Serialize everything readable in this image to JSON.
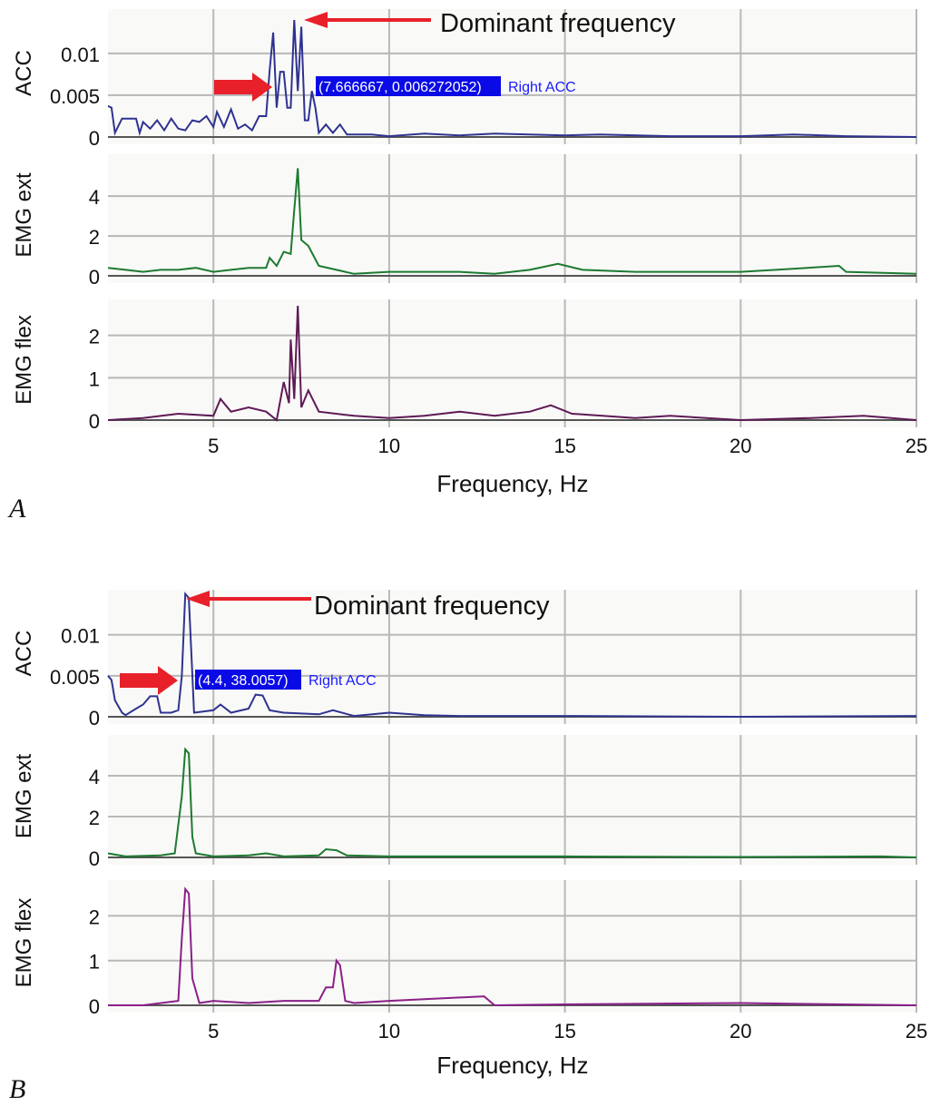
{
  "colors": {
    "acc": "#2f3390",
    "emg_ext": "#1d7a30",
    "emg_flex_a": "#5e1a55",
    "emg_flex_b": "#8a1f88",
    "arrow": "#e8202a",
    "cursor_box": "#0a0ae6",
    "series_label": "#1a1aff",
    "grid": "#b8b8b8"
  },
  "chart_data": [
    {
      "panel_label": "A",
      "type": "line",
      "xlabel": "Frequency, Hz",
      "xlim": [
        2,
        25
      ],
      "xticks": [
        5,
        10,
        15,
        20,
        25
      ],
      "grid": true,
      "annotation": {
        "text": "Dominant frequency",
        "cursor": "(7.666667, 0.006272052)",
        "series": "Right ACC"
      },
      "subplots": [
        {
          "ylabel": "ACC",
          "ylim": [
            0,
            0.0153
          ],
          "yticks": [
            0,
            0.005,
            0.01
          ],
          "ytick_labels": [
            "0",
            "0.005",
            "0.01"
          ],
          "color_key": "acc",
          "points": [
            [
              2,
              0.0037
            ],
            [
              2.1,
              0.0035
            ],
            [
              2.2,
              0.0005
            ],
            [
              2.4,
              0.0022
            ],
            [
              2.8,
              0.0022
            ],
            [
              2.9,
              0.0005
            ],
            [
              3,
              0.0018
            ],
            [
              3.2,
              0.001
            ],
            [
              3.4,
              0.002
            ],
            [
              3.6,
              0.0008
            ],
            [
              3.8,
              0.0022
            ],
            [
              4,
              0.001
            ],
            [
              4.2,
              0.0008
            ],
            [
              4.4,
              0.002
            ],
            [
              4.6,
              0.0018
            ],
            [
              4.8,
              0.0025
            ],
            [
              5,
              0.0012
            ],
            [
              5.1,
              0.003
            ],
            [
              5.3,
              0.0012
            ],
            [
              5.5,
              0.0033
            ],
            [
              5.7,
              0.001
            ],
            [
              5.9,
              0.0015
            ],
            [
              6.1,
              0.0008
            ],
            [
              6.3,
              0.0025
            ],
            [
              6.5,
              0.0025
            ],
            [
              6.6,
              0.008
            ],
            [
              6.7,
              0.0125
            ],
            [
              6.8,
              0.0035
            ],
            [
              6.9,
              0.0078
            ],
            [
              7,
              0.0078
            ],
            [
              7.1,
              0.0035
            ],
            [
              7.2,
              0.0035
            ],
            [
              7.3,
              0.014
            ],
            [
              7.4,
              0.0055
            ],
            [
              7.5,
              0.0132
            ],
            [
              7.6,
              0.002
            ],
            [
              7.7,
              0.002
            ],
            [
              7.8,
              0.0055
            ],
            [
              7.9,
              0.0035
            ],
            [
              8,
              0.0005
            ],
            [
              8.2,
              0.0015
            ],
            [
              8.4,
              0.0005
            ],
            [
              8.6,
              0.0015
            ],
            [
              8.8,
              0.0003
            ],
            [
              9.5,
              0.0003
            ],
            [
              10,
              0.0001
            ],
            [
              11,
              0.0004
            ],
            [
              12,
              0.0002
            ],
            [
              13,
              0.0004
            ],
            [
              14,
              0.0003
            ],
            [
              15,
              0.0002
            ],
            [
              16,
              0.0003
            ],
            [
              18,
              0.0001
            ],
            [
              20,
              0.0001
            ],
            [
              21.5,
              0.0003
            ],
            [
              23,
              0.0001
            ],
            [
              25,
              0
            ]
          ]
        },
        {
          "ylabel": "EMG ext",
          "ylim": [
            0,
            6.1
          ],
          "yticks": [
            0,
            2,
            4
          ],
          "ytick_labels": [
            "0",
            "2",
            "4"
          ],
          "color_key": "emg_ext",
          "points": [
            [
              2,
              0.4
            ],
            [
              2.5,
              0.3
            ],
            [
              3,
              0.2
            ],
            [
              3.5,
              0.3
            ],
            [
              4,
              0.3
            ],
            [
              4.5,
              0.4
            ],
            [
              5,
              0.2
            ],
            [
              5.5,
              0.3
            ],
            [
              6,
              0.4
            ],
            [
              6.5,
              0.4
            ],
            [
              6.6,
              0.9
            ],
            [
              6.8,
              0.5
            ],
            [
              7,
              1.2
            ],
            [
              7.2,
              1.1
            ],
            [
              7.3,
              3.3
            ],
            [
              7.4,
              5.4
            ],
            [
              7.5,
              1.8
            ],
            [
              7.7,
              1.5
            ],
            [
              8,
              0.5
            ],
            [
              8.5,
              0.3
            ],
            [
              9,
              0.1
            ],
            [
              10,
              0.2
            ],
            [
              11,
              0.2
            ],
            [
              12,
              0.2
            ],
            [
              13,
              0.1
            ],
            [
              14,
              0.3
            ],
            [
              14.8,
              0.6
            ],
            [
              15.5,
              0.3
            ],
            [
              17,
              0.2
            ],
            [
              18,
              0.2
            ],
            [
              20,
              0.2
            ],
            [
              21,
              0.3
            ],
            [
              22.8,
              0.5
            ],
            [
              23,
              0.2
            ],
            [
              25,
              0.1
            ]
          ]
        },
        {
          "ylabel": "EMG flex",
          "ylim": [
            0,
            2.85
          ],
          "yticks": [
            0,
            1,
            2
          ],
          "ytick_labels": [
            "0",
            "1",
            "2"
          ],
          "color_key": "emg_flex_a",
          "points": [
            [
              2,
              0
            ],
            [
              3,
              0.05
            ],
            [
              4,
              0.15
            ],
            [
              5,
              0.1
            ],
            [
              5.2,
              0.5
            ],
            [
              5.5,
              0.2
            ],
            [
              6,
              0.3
            ],
            [
              6.5,
              0.2
            ],
            [
              6.8,
              0
            ],
            [
              7,
              0.9
            ],
            [
              7.15,
              0.4
            ],
            [
              7.2,
              1.9
            ],
            [
              7.3,
              0.5
            ],
            [
              7.4,
              2.7
            ],
            [
              7.5,
              0.3
            ],
            [
              7.7,
              0.7
            ],
            [
              8,
              0.2
            ],
            [
              9,
              0.1
            ],
            [
              10,
              0.05
            ],
            [
              11,
              0.1
            ],
            [
              12,
              0.2
            ],
            [
              13,
              0.1
            ],
            [
              14,
              0.2
            ],
            [
              14.6,
              0.35
            ],
            [
              15.2,
              0.15
            ],
            [
              17,
              0.05
            ],
            [
              18,
              0.1
            ],
            [
              20,
              0
            ],
            [
              22,
              0.05
            ],
            [
              23.5,
              0.1
            ],
            [
              25,
              0
            ]
          ]
        }
      ]
    },
    {
      "panel_label": "B",
      "type": "line",
      "xlabel": "Frequency, Hz",
      "xlim": [
        2,
        25
      ],
      "xticks": [
        5,
        10,
        15,
        20,
        25
      ],
      "grid": true,
      "annotation": {
        "text": "Dominant frequency",
        "cursor": "(4.4, 38.0057)",
        "series": "Right ACC"
      },
      "subplots": [
        {
          "ylabel": "ACC",
          "ylim": [
            0,
            0.0155
          ],
          "yticks": [
            0,
            0.005,
            0.01
          ],
          "ytick_labels": [
            "0",
            "0.005",
            "0.01"
          ],
          "color_key": "acc",
          "points": [
            [
              2,
              0.005
            ],
            [
              2.1,
              0.0045
            ],
            [
              2.2,
              0.002
            ],
            [
              2.4,
              0.0005
            ],
            [
              2.5,
              0.0002
            ],
            [
              2.8,
              0.001
            ],
            [
              3,
              0.0015
            ],
            [
              3.2,
              0.0025
            ],
            [
              3.4,
              0.0025
            ],
            [
              3.5,
              0.0005
            ],
            [
              3.8,
              0.0005
            ],
            [
              4,
              0.0008
            ],
            [
              4.1,
              0.005
            ],
            [
              4.2,
              0.015
            ],
            [
              4.3,
              0.0145
            ],
            [
              4.45,
              0.0005
            ],
            [
              5,
              0.0008
            ],
            [
              5.2,
              0.0015
            ],
            [
              5.5,
              0.0005
            ],
            [
              6,
              0.001
            ],
            [
              6.2,
              0.0027
            ],
            [
              6.4,
              0.0026
            ],
            [
              6.6,
              0.0008
            ],
            [
              7,
              0.0005
            ],
            [
              8,
              0.0003
            ],
            [
              8.4,
              0.0008
            ],
            [
              9,
              0.0001
            ],
            [
              10,
              0.0005
            ],
            [
              11,
              0.0002
            ],
            [
              12,
              0.0001
            ],
            [
              15,
              0.0001
            ],
            [
              20,
              0
            ],
            [
              25,
              0.0001
            ]
          ]
        },
        {
          "ylabel": "EMG ext",
          "ylim": [
            0,
            6
          ],
          "yticks": [
            0,
            2,
            4
          ],
          "ytick_labels": [
            "0",
            "2",
            "4"
          ],
          "color_key": "emg_ext",
          "points": [
            [
              2,
              0.2
            ],
            [
              2.5,
              0.05
            ],
            [
              3.5,
              0.1
            ],
            [
              3.9,
              0.2
            ],
            [
              4.1,
              3
            ],
            [
              4.2,
              5.3
            ],
            [
              4.3,
              5.1
            ],
            [
              4.4,
              1
            ],
            [
              4.5,
              0.2
            ],
            [
              5,
              0.05
            ],
            [
              6,
              0.1
            ],
            [
              6.5,
              0.2
            ],
            [
              7,
              0.05
            ],
            [
              8,
              0.1
            ],
            [
              8.2,
              0.4
            ],
            [
              8.5,
              0.35
            ],
            [
              8.8,
              0.1
            ],
            [
              10,
              0.05
            ],
            [
              15,
              0.05
            ],
            [
              20,
              0.02
            ],
            [
              24,
              0.05
            ],
            [
              25,
              0
            ]
          ]
        },
        {
          "ylabel": "EMG flex",
          "ylim": [
            0,
            2.8
          ],
          "yticks": [
            0,
            1,
            2
          ],
          "ytick_labels": [
            "0",
            "1",
            "2"
          ],
          "color_key": "emg_flex_b",
          "points": [
            [
              2,
              0
            ],
            [
              3,
              0
            ],
            [
              4,
              0.1
            ],
            [
              4.1,
              1.5
            ],
            [
              4.2,
              2.6
            ],
            [
              4.3,
              2.5
            ],
            [
              4.4,
              0.6
            ],
            [
              4.6,
              0.05
            ],
            [
              5,
              0.1
            ],
            [
              6,
              0.05
            ],
            [
              7,
              0.1
            ],
            [
              8,
              0.1
            ],
            [
              8.2,
              0.4
            ],
            [
              8.4,
              0.4
            ],
            [
              8.5,
              1.0
            ],
            [
              8.6,
              0.9
            ],
            [
              8.75,
              0.1
            ],
            [
              9,
              0.05
            ],
            [
              10,
              0.1
            ],
            [
              12.7,
              0.2
            ],
            [
              13,
              0
            ],
            [
              15,
              0.02
            ],
            [
              20,
              0.05
            ],
            [
              25,
              0
            ]
          ]
        }
      ]
    }
  ]
}
